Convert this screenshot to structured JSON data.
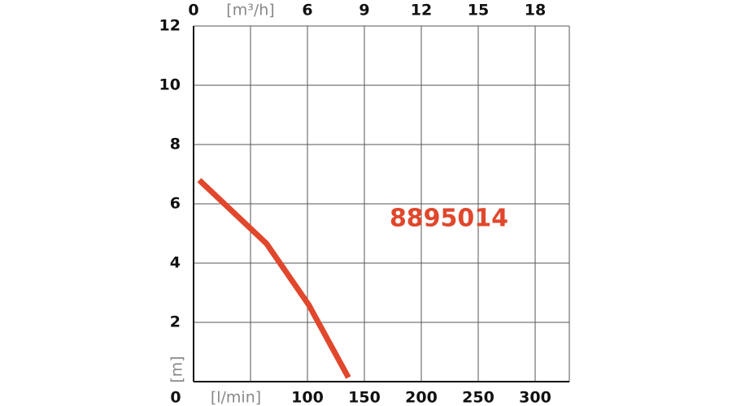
{
  "chart_data": {
    "type": "line",
    "series": [
      {
        "name": "8895014",
        "color": "#e0472c",
        "x": [
          5,
          64,
          101,
          136
        ],
        "values": [
          6.8,
          4.66,
          2.6,
          0.14
        ]
      }
    ],
    "xlim": [
      0,
      330
    ],
    "xticks": [
      0,
      {
        "value": 50,
        "label": "[l/min]"
      },
      100,
      150,
      200,
      250,
      300
    ],
    "x2lim": [
      0,
      19.8
    ],
    "x2ticks": [
      0,
      {
        "value": 3,
        "label": "[m³/h]"
      },
      6,
      9,
      12,
      15,
      18
    ],
    "ylim": [
      0,
      12
    ],
    "yticks": [
      2,
      4,
      6,
      8,
      10,
      12
    ],
    "ylabel": "[m]",
    "grid": true
  }
}
